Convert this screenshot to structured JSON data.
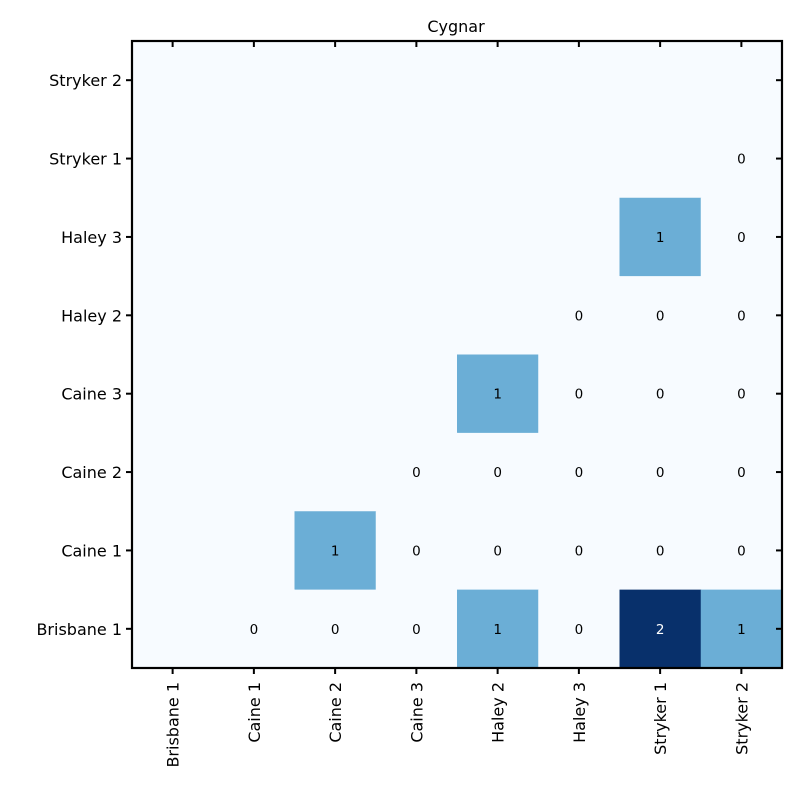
{
  "chart_data": {
    "type": "heatmap",
    "title": "Cygnar",
    "x_categories": [
      "Brisbane 1",
      "Caine 1",
      "Caine 2",
      "Caine 3",
      "Haley 2",
      "Haley 3",
      "Stryker 1",
      "Stryker 2"
    ],
    "y_categories": [
      "Stryker 2",
      "Stryker 1",
      "Haley 3",
      "Haley 2",
      "Caine 3",
      "Caine 2",
      "Caine 1",
      "Brisbane 1"
    ],
    "values": [
      [
        null,
        null,
        null,
        null,
        null,
        null,
        null,
        null
      ],
      [
        null,
        null,
        null,
        null,
        null,
        null,
        null,
        0
      ],
      [
        null,
        null,
        null,
        null,
        null,
        null,
        1,
        0
      ],
      [
        null,
        null,
        null,
        null,
        null,
        0,
        0,
        0
      ],
      [
        null,
        null,
        null,
        null,
        1,
        0,
        0,
        0
      ],
      [
        null,
        null,
        null,
        0,
        0,
        0,
        0,
        0
      ],
      [
        null,
        null,
        1,
        0,
        0,
        0,
        0,
        0
      ],
      [
        null,
        0,
        0,
        0,
        1,
        0,
        2,
        1
      ]
    ],
    "colormap": "Blues",
    "color_range": [
      0,
      2
    ],
    "colors": {
      "low": "#f7fbff",
      "mid": "#6baed6",
      "high": "#08306b"
    },
    "xlabel": "",
    "ylabel": "",
    "grid": false
  }
}
